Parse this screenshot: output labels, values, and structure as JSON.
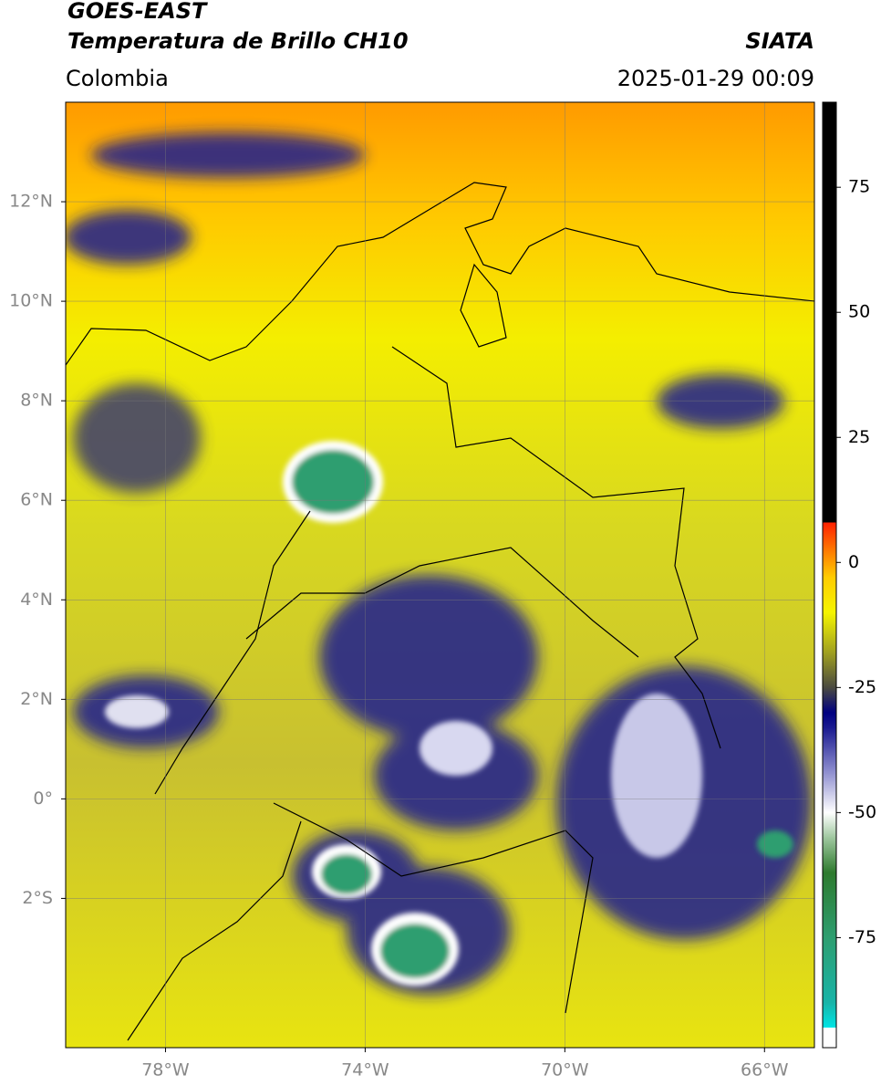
{
  "header": {
    "satellite": "GOES-EAST",
    "product": "Temperatura de Brillo CH10",
    "source": "SIATA",
    "region": "Colombia",
    "datetime": "2025-01-29 00:09"
  },
  "map": {
    "xlim": [
      -80,
      -65
    ],
    "ylim": [
      -5,
      14
    ],
    "xticks": [
      {
        "value": -78,
        "label": "78°W"
      },
      {
        "value": -74,
        "label": "74°W"
      },
      {
        "value": -70,
        "label": "70°W"
      },
      {
        "value": -66,
        "label": "66°W"
      }
    ],
    "yticks": [
      {
        "value": 12,
        "label": "12°N"
      },
      {
        "value": 10,
        "label": "10°N"
      },
      {
        "value": 8,
        "label": "8°N"
      },
      {
        "value": 6,
        "label": "6°N"
      },
      {
        "value": 4,
        "label": "4°N"
      },
      {
        "value": 2,
        "label": "2°N"
      },
      {
        "value": 0,
        "label": "0°"
      },
      {
        "value": -2,
        "label": "2°S"
      }
    ],
    "grid": true
  },
  "colorbar": {
    "clim": [
      -97,
      92
    ],
    "ticks": [
      75,
      50,
      25,
      0,
      -25,
      -50,
      -75
    ],
    "colormap": [
      {
        "value": -97,
        "color": "#ffffff"
      },
      {
        "value": -93,
        "color": "#ffffff"
      },
      {
        "value": -93,
        "color": "#00e5e5"
      },
      {
        "value": -88,
        "color": "#18b4a8"
      },
      {
        "value": -75,
        "color": "#2e9e70"
      },
      {
        "value": -62,
        "color": "#2e7a2e"
      },
      {
        "value": -55,
        "color": "#9fc89f"
      },
      {
        "value": -50,
        "color": "#ffffff"
      },
      {
        "value": -42,
        "color": "#9090d0"
      },
      {
        "value": -33,
        "color": "#1a1a90"
      },
      {
        "value": -30,
        "color": "#000080"
      },
      {
        "value": -25,
        "color": "#4a4a40"
      },
      {
        "value": -18,
        "color": "#a0a020"
      },
      {
        "value": -10,
        "color": "#f5f500"
      },
      {
        "value": -3,
        "color": "#ffcc00"
      },
      {
        "value": 2,
        "color": "#ff8000"
      },
      {
        "value": 8,
        "color": "#ff2000"
      },
      {
        "value": 8,
        "color": "#000000"
      },
      {
        "value": 92,
        "color": "#000000"
      }
    ]
  }
}
